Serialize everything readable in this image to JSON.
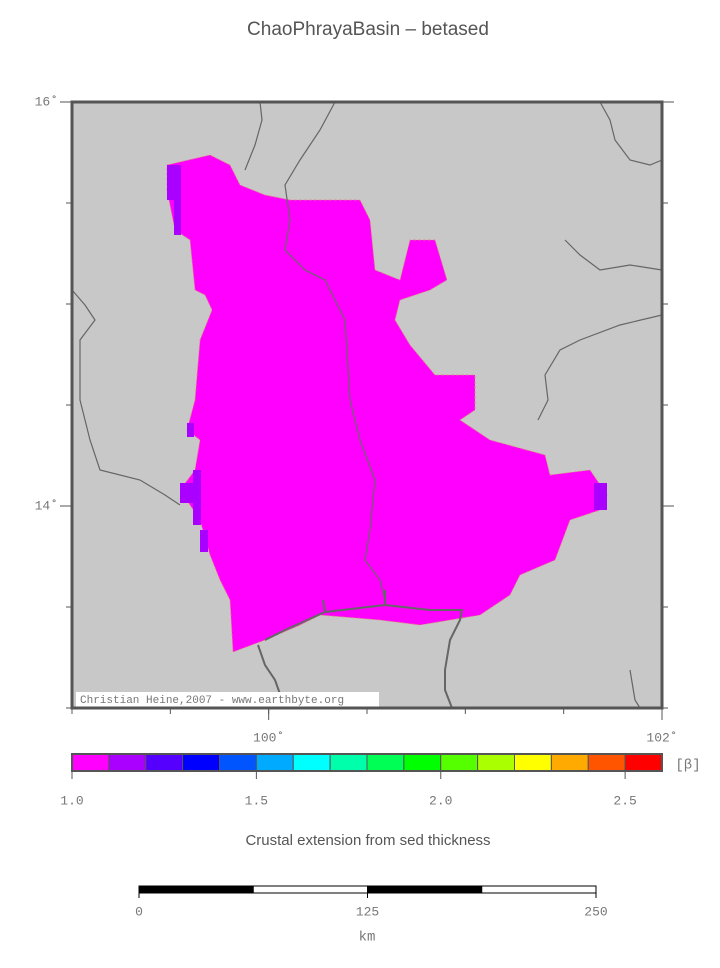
{
  "map": {
    "title": "ChaoPhrayaBasin – betased",
    "lon_range": [
      99,
      102
    ],
    "lat_range": [
      13,
      16
    ],
    "lat_ticks": [
      {
        "value": 16,
        "label": "16˚"
      },
      {
        "value": 14,
        "label": "14˚"
      }
    ],
    "lon_ticks": [
      {
        "value": 100,
        "label": "100˚"
      },
      {
        "value": 102,
        "label": "102˚"
      }
    ],
    "credit": "Christian Heine,2007 - www.earthbyte.org"
  },
  "colorbar": {
    "unit": "[β]",
    "range": [
      1.0,
      2.6
    ],
    "ticks": [
      {
        "value": 1.0,
        "label": "1.0"
      },
      {
        "value": 1.5,
        "label": "1.5"
      },
      {
        "value": 2.0,
        "label": "2.0"
      },
      {
        "value": 2.5,
        "label": "2.5"
      }
    ],
    "colors": [
      "#ff00ff",
      "#aa00ff",
      "#5500ff",
      "#0000ff",
      "#0055ff",
      "#00aaff",
      "#00ffff",
      "#00ffaa",
      "#00ff55",
      "#00ff00",
      "#55ff00",
      "#aaff00",
      "#ffff00",
      "#ffaa00",
      "#ff5500",
      "#ff0000"
    ],
    "label": "Crustal extension from sed thickness"
  },
  "scalebar": {
    "range": [
      0,
      250
    ],
    "ticks": [
      0,
      125,
      250
    ],
    "unit": "km"
  }
}
